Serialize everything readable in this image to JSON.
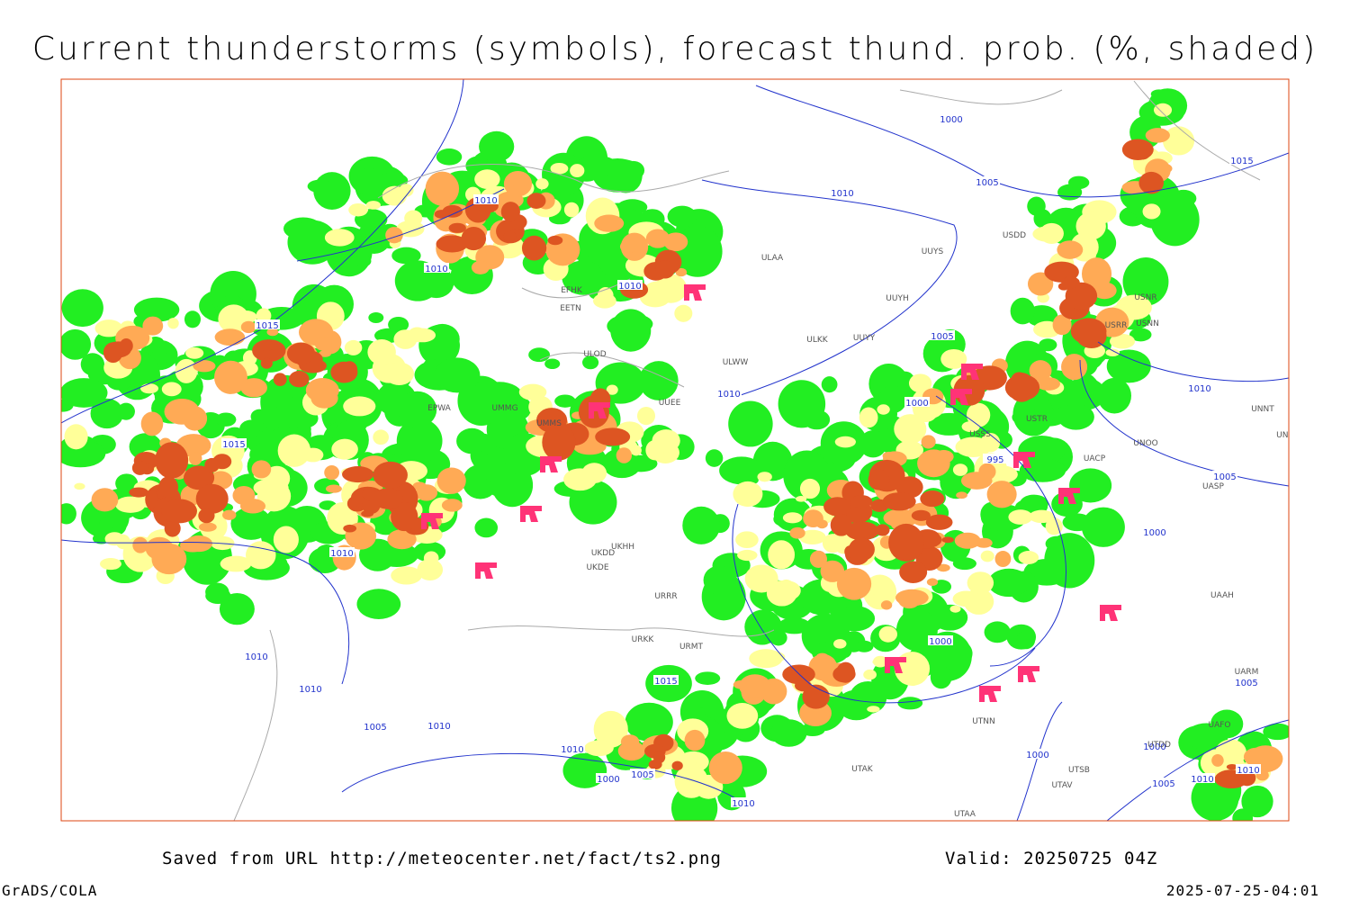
{
  "title": "Current thunderstorms (symbols), forecast thund. prob. (%, shaded)",
  "isobar_labels": [
    "1000",
    "1005",
    "1010",
    "1010",
    "1010",
    "1010",
    "1015",
    "1005",
    "1010",
    "1000",
    "1015",
    "1010",
    "1015",
    "995",
    "1005",
    "1000",
    "1010",
    "1000",
    "1010",
    "1010",
    "1015",
    "1005",
    "1005",
    "1010",
    "1010",
    "1000",
    "1000",
    "1000",
    "1005",
    "1010",
    "1010",
    "1010",
    "1005"
  ],
  "station_labels": [
    "ULAA",
    "UUYS",
    "USDD",
    "UUYH",
    "ULKK",
    "UUYY",
    "ULWW",
    "ULOD",
    "EFHK",
    "EETN",
    "EPWA",
    "UMMG",
    "UMMS",
    "UUEE",
    "USSS",
    "USTR",
    "UNOO",
    "UACP",
    "UASP",
    "UNNT",
    "UNBB",
    "USNR",
    "USNN",
    "USRR",
    "URRR",
    "UKDD",
    "UKDE",
    "UKHH",
    "URMT",
    "URKK",
    "UTAA",
    "UTAK",
    "UTNN",
    "UTSB",
    "UTAV",
    "UAAH",
    "UTDD",
    "UARM",
    "UAFO"
  ],
  "footer": {
    "saved": "Saved from URL http://meteocenter.net/fact/ts2.png",
    "valid": "Valid: 20250725 04Z",
    "software": "GrADS/COLA",
    "timestamp": "2025-07-25-04:01"
  }
}
